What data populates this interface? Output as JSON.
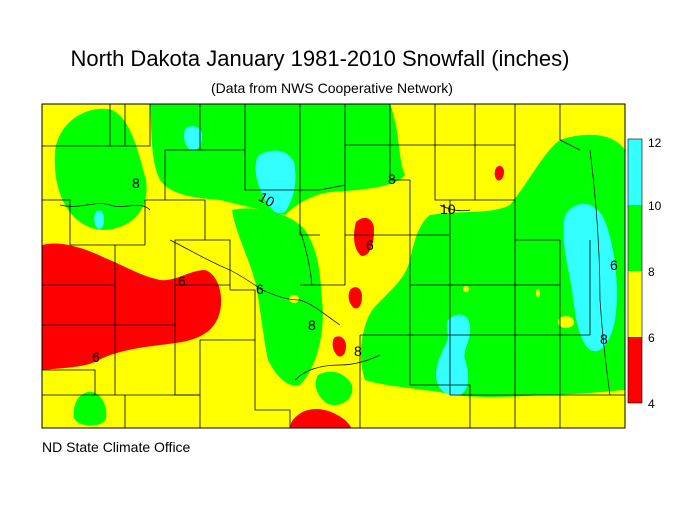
{
  "title": "North Dakota January 1981-2010 Snowfall (inches)",
  "subtitle": "(Data from NWS Cooperative Network)",
  "footer": "ND State Climate Office",
  "legend": {
    "items": [
      {
        "range": "10-12",
        "color": "#33ffff"
      },
      {
        "range": "8-10",
        "color": "#00ff00"
      },
      {
        "range": "6-8",
        "color": "#ffff00"
      },
      {
        "range": "4-6",
        "color": "#ff0000"
      }
    ],
    "ticks": [
      "12",
      "10",
      "8",
      "6",
      "4"
    ]
  },
  "contour_labels": [
    "8",
    "10",
    "6",
    "6",
    "6",
    "8",
    "8",
    "10",
    "6",
    "8",
    "8",
    "6"
  ]
}
